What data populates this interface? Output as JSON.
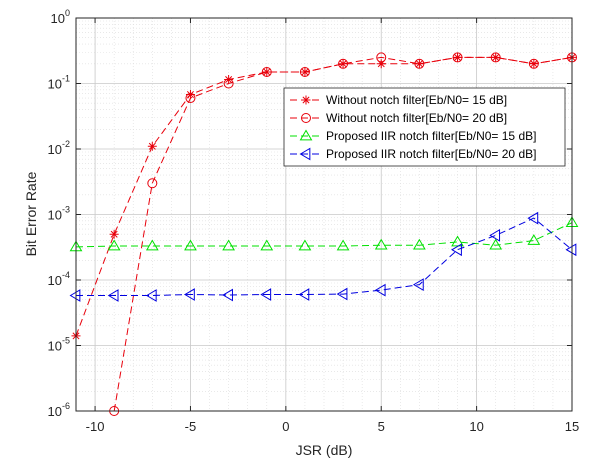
{
  "chart_data": {
    "type": "line",
    "xlabel": "JSR (dB)",
    "ylabel": "Bit Error Rate",
    "xlim": [
      -11,
      15
    ],
    "ylim": [
      1e-06,
      1
    ],
    "yscale": "log",
    "grid": true,
    "minor_grid": true,
    "legend_position": "top-right",
    "x_ticks": [
      -10,
      -5,
      0,
      5,
      10,
      15
    ],
    "x_tick_labels": [
      "-10",
      "-5",
      "0",
      "5",
      "10",
      "15"
    ],
    "y_ticks": [
      1e-06,
      1e-05,
      0.0001,
      0.001,
      0.01,
      0.1,
      1
    ],
    "y_tick_exponents": [
      "-6",
      "-5",
      "-4",
      "-3",
      "-2",
      "-1",
      "0"
    ],
    "y_tick_base": "10",
    "series": [
      {
        "name": "Without notch filter[Eb/N0= 15 dB]",
        "color": "#e8000b",
        "marker": "star",
        "x": [
          -11,
          -9,
          -7,
          -5,
          -3,
          -1,
          1,
          3,
          5,
          7,
          9,
          11,
          13,
          15
        ],
        "y": [
          1.4e-05,
          0.0005,
          0.011,
          0.068,
          0.115,
          0.15,
          0.15,
          0.2,
          0.2,
          0.2,
          0.25,
          0.25,
          0.2,
          0.25
        ]
      },
      {
        "name": "Without notch filter[Eb/N0= 20 dB]",
        "color": "#e8000b",
        "marker": "circle",
        "x": [
          -9,
          -7,
          -5,
          -3,
          -1,
          1,
          3,
          5,
          7,
          9,
          11,
          13,
          15
        ],
        "y": [
          1e-06,
          0.003,
          0.06,
          0.1,
          0.15,
          0.15,
          0.2,
          0.25,
          0.2,
          0.25,
          0.25,
          0.2,
          0.25
        ]
      },
      {
        "name": "Proposed IIR notch filter[Eb/N0= 15 dB]",
        "color": "#00e000",
        "marker": "triangle-up",
        "x": [
          -11,
          -9,
          -7,
          -5,
          -3,
          -1,
          1,
          3,
          5,
          7,
          9,
          11,
          13,
          15
        ],
        "y": [
          0.00032,
          0.00033,
          0.00033,
          0.00033,
          0.00033,
          0.00033,
          0.00033,
          0.00033,
          0.00034,
          0.00034,
          0.00038,
          0.00034,
          0.0004,
          0.00075
        ]
      },
      {
        "name": "Proposed IIR notch filter[Eb/N0= 20 dB]",
        "color": "#0000e0",
        "marker": "triangle-left",
        "x": [
          -11,
          -9,
          -7,
          -5,
          -3,
          -1,
          1,
          3,
          5,
          7,
          9,
          11,
          13,
          15
        ],
        "y": [
          5.8e-05,
          5.8e-05,
          5.8e-05,
          6e-05,
          5.9e-05,
          6e-05,
          6e-05,
          6.1e-05,
          7e-05,
          8.5e-05,
          0.00029,
          0.00048,
          0.00088,
          0.00029
        ]
      }
    ]
  }
}
